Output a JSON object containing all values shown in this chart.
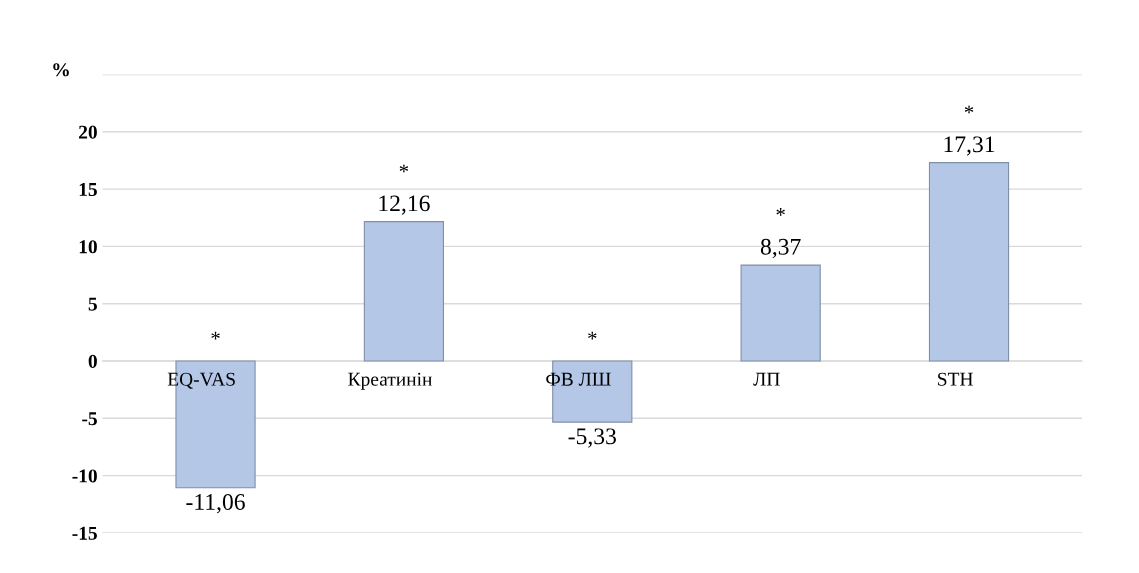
{
  "chart_data": {
    "type": "bar",
    "ylabel": "%",
    "categories": [
      "EQ-VAS",
      "Креатинін",
      "ФВ ЛШ",
      "ЛП",
      "STH"
    ],
    "values": [
      -11.06,
      12.16,
      -5.33,
      8.37,
      17.31
    ],
    "value_labels": [
      "-11,06",
      "12,16",
      "-5,33",
      "8,37",
      "17,31"
    ],
    "color": "#b4c7e7",
    "ylim": [
      -15,
      25
    ],
    "yticks": [
      -15,
      -10,
      -5,
      0,
      5,
      10,
      15,
      20,
      {
        "value": 25,
        "label": null
      }
    ],
    "grid": "y",
    "annotations": [
      "*",
      "*",
      "*",
      "*",
      "*"
    ]
  }
}
